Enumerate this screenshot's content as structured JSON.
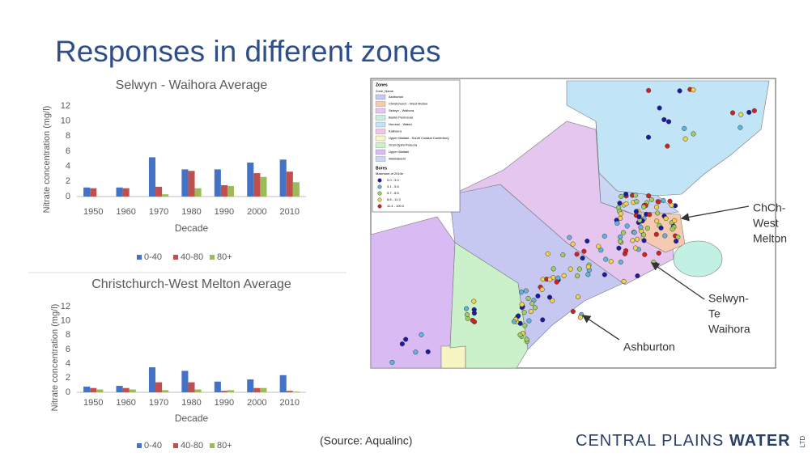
{
  "title": "Responses in different zones",
  "chart_data": [
    {
      "type": "bar",
      "title": "Selwyn - Waihora Average",
      "x_label": "Decade",
      "y_label": "Nitrate concentration (mg/l)",
      "categories": [
        "1950",
        "1960",
        "1970",
        "1980",
        "1990",
        "2000",
        "2010"
      ],
      "series": [
        {
          "name": "0-40",
          "color": "#4472c4",
          "values": [
            1.2,
            1.2,
            5.2,
            3.6,
            3.6,
            4.5,
            4.9
          ]
        },
        {
          "name": "40-80",
          "color": "#c0504d",
          "values": [
            1.1,
            1.1,
            1.3,
            3.4,
            1.5,
            3.1,
            3.3
          ]
        },
        {
          "name": "80+",
          "color": "#9bbb59",
          "values": [
            0,
            0,
            0.3,
            1.1,
            1.4,
            2.6,
            1.9
          ]
        }
      ],
      "ylim": [
        0,
        12
      ],
      "yticks": [
        0,
        2,
        4,
        6,
        8,
        10,
        12
      ],
      "grid": false,
      "legend": "bottom"
    },
    {
      "type": "bar",
      "title": "Christchurch-West Melton Average",
      "x_label": "Decade",
      "y_label": "Nitrate concentration (mg/l)",
      "categories": [
        "1950",
        "1960",
        "1970",
        "1980",
        "1990",
        "2000",
        "2010"
      ],
      "series": [
        {
          "name": "0-40",
          "color": "#4472c4",
          "values": [
            0.8,
            0.9,
            3.5,
            3.0,
            1.5,
            1.8,
            2.4
          ]
        },
        {
          "name": "40-80",
          "color": "#c0504d",
          "values": [
            0.6,
            0.6,
            1.4,
            1.4,
            0.2,
            0.6,
            0.2
          ]
        },
        {
          "name": "80+",
          "color": "#9bbb59",
          "values": [
            0.4,
            0.4,
            0.3,
            0.4,
            0.3,
            0.6,
            0.1
          ]
        }
      ],
      "ylim": [
        0,
        12
      ],
      "yticks": [
        0,
        2,
        4,
        6,
        8,
        10,
        12
      ],
      "grid": false,
      "legend": "bottom"
    }
  ],
  "map": {
    "legend_title": "Zones",
    "zone_header": "Zone_Name",
    "zones": [
      {
        "name": "Ashburton",
        "color": "#c6c8f2"
      },
      {
        "name": "Christchurch - West Melton",
        "color": "#f6c9b1"
      },
      {
        "name": "Selwyn - Waihora",
        "color": "#e4c6ef"
      },
      {
        "name": "Banks Peninsula",
        "color": "#c2f0e2"
      },
      {
        "name": "Hurunui - Waiau",
        "color": "#c1e4f6"
      },
      {
        "name": "Kaikoura",
        "color": "#f2c4ea"
      },
      {
        "name": "Upper Waitaki - South Coastal Canterbury",
        "color": "#f7f5c2"
      },
      {
        "name": "Orari-Opihi-Pareora",
        "color": "#cbf1cb"
      },
      {
        "name": "Upper Waitaki",
        "color": "#d9baf2"
      },
      {
        "name": "Waimakariri",
        "color": "#c9d6f5"
      }
    ],
    "bores_title": "Bores",
    "bores_subtitle": "Maximum of 2010s",
    "bore_classes": [
      {
        "name": "0.0 - 3.0",
        "color": "#1a1aa8"
      },
      {
        "name": "3.1 - 5.6",
        "color": "#5fb4e0"
      },
      {
        "name": "5.7 - 8.5",
        "color": "#9fcf60"
      },
      {
        "name": "8.6 - 11.3",
        "color": "#f2d24a"
      },
      {
        "name": "11.4 - 100.0",
        "color": "#d42020"
      }
    ],
    "labels": [
      [
        "ChCh-",
        "West",
        "Melton"
      ],
      [
        "Selwyn-",
        "Te",
        "Waihora"
      ],
      [
        "Ashburton"
      ]
    ]
  },
  "source": "(Source: Aqualinc)",
  "logo": {
    "text": "CENTRAL PLAINS",
    "bold": "WATER",
    "suffix": "LTD"
  }
}
